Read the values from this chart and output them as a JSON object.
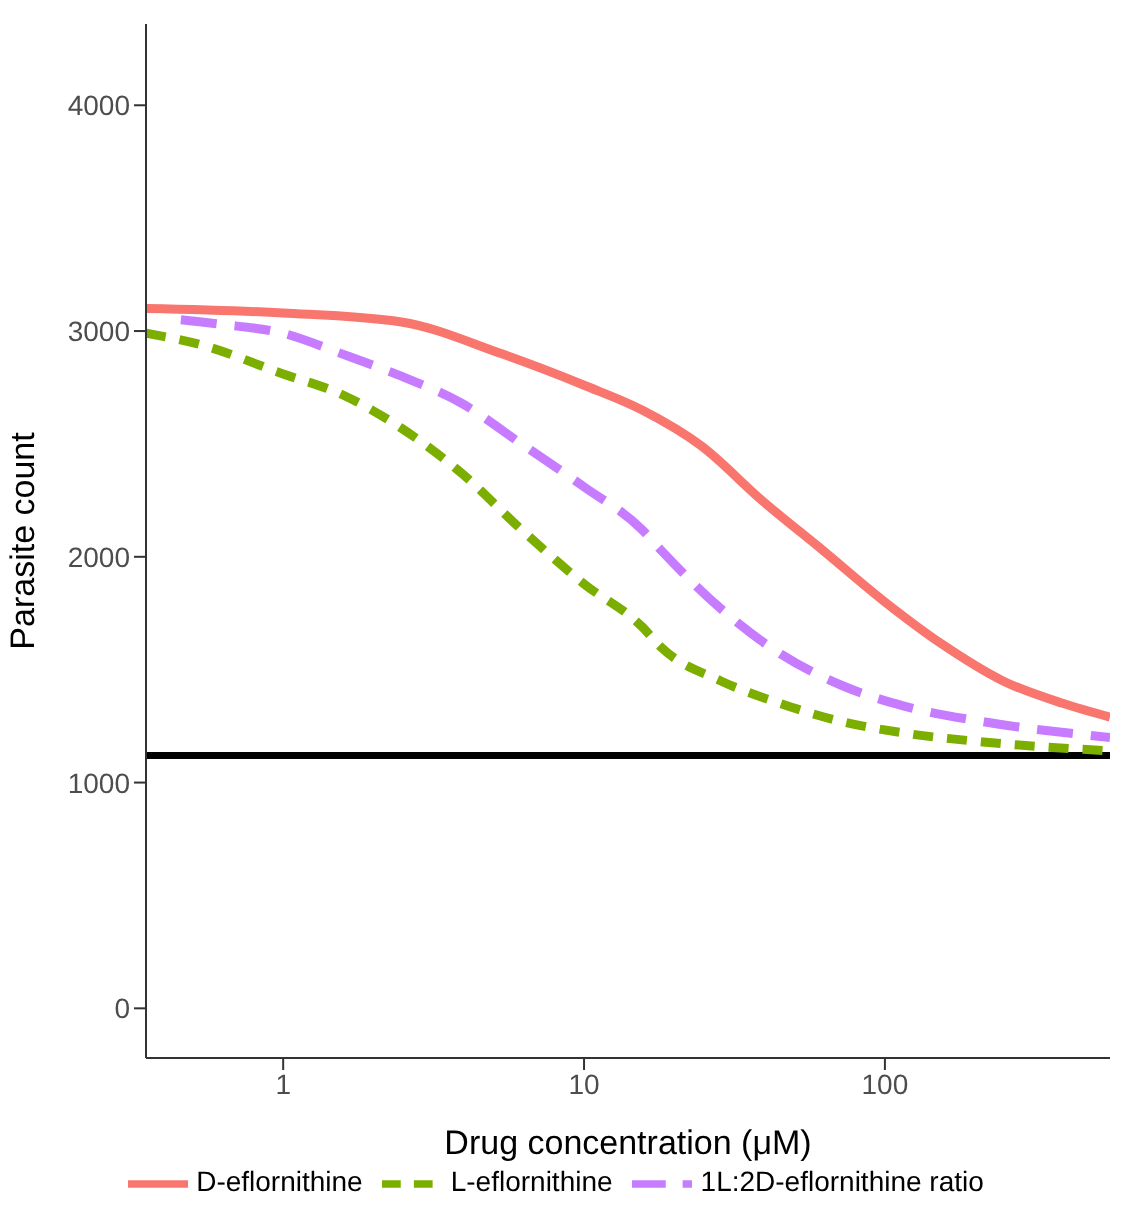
{
  "chart_data": {
    "type": "line",
    "xlabel": "Drug concentration (μM)",
    "ylabel": "Parasite count",
    "log": "x",
    "xlim": [
      0.35,
      560
    ],
    "xticks": [
      1,
      10,
      100
    ],
    "ylim": [
      -220,
      4360
    ],
    "yticks": [
      0,
      1000,
      2000,
      3000,
      4000
    ],
    "grid": false,
    "legend": "bottom",
    "marker": "none",
    "ref_lines": [
      {
        "axis": "y",
        "value": 1120,
        "color": "#000000"
      }
    ],
    "series": [
      {
        "name": "D-eflornithine",
        "color": "#f8766d",
        "line_style": "solid",
        "x": [
          0.35,
          1,
          2.47,
          5.3,
          10,
          15.6,
          24.6,
          39,
          62,
          100,
          156,
          247,
          392,
          560
        ],
        "values": [
          3100,
          3080,
          3040,
          2900,
          2760,
          2650,
          2490,
          2250,
          2030,
          1800,
          1610,
          1450,
          1350,
          1290
        ]
      },
      {
        "name": "L-eflornithine",
        "color": "#7cae00",
        "line_style": "dashed",
        "x": [
          0.35,
          0.53,
          1,
          1.56,
          2.47,
          3.92,
          6.2,
          10,
          15.6,
          18,
          28.5,
          45,
          72,
          115,
          212,
          560
        ],
        "values": [
          2990,
          2940,
          2810,
          2720,
          2570,
          2370,
          2120,
          1880,
          1690,
          1600,
          1450,
          1350,
          1270,
          1220,
          1180,
          1140
        ]
      },
      {
        "name": "1L:2D-eflornithine ratio",
        "color": "#c77cff",
        "line_style": "dashed",
        "x": [
          0.457,
          0.62,
          1,
          1.56,
          2.47,
          3.92,
          6.2,
          10,
          15.6,
          18,
          28.5,
          45,
          72,
          115,
          212,
          560
        ],
        "values": [
          3050,
          3030,
          2990,
          2900,
          2800,
          2680,
          2500,
          2310,
          2120,
          2030,
          1770,
          1570,
          1430,
          1340,
          1270,
          1200
        ]
      }
    ]
  }
}
